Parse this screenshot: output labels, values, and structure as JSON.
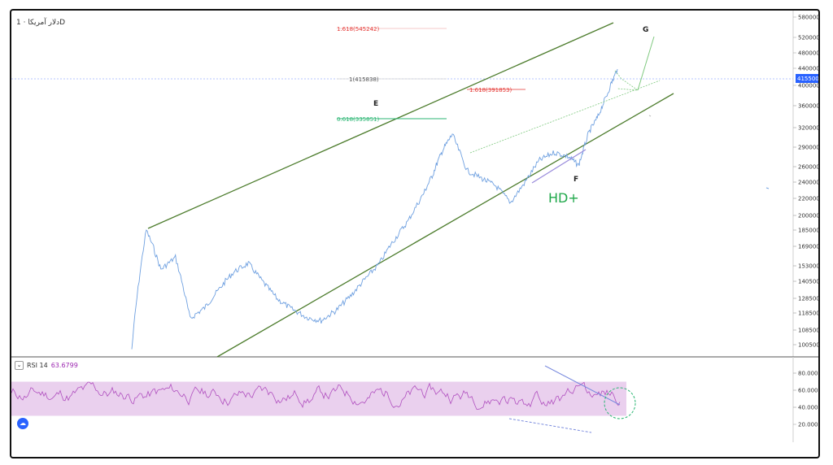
{
  "header": {
    "title": "دلار آمریکا · 1D"
  },
  "rsi_panel": {
    "label": "RSI 14",
    "value": "63.6799",
    "toggle_glyph": "⌄",
    "logo_glyph": "☁"
  },
  "chart_data": [
    {
      "type": "line",
      "title": "",
      "y_axis_ticks": [
        "580000",
        "520000",
        "480000",
        "440000",
        "400000",
        "360000",
        "320000",
        "290000",
        "260000",
        "240000",
        "220000",
        "200000",
        "185000",
        "169000",
        "153000",
        "140500",
        "128500",
        "118500",
        "108500",
        "100500"
      ],
      "y_axis_values": [
        580000,
        520000,
        480000,
        440000,
        400000,
        360000,
        320000,
        290000,
        260000,
        240000,
        220000,
        200000,
        185000,
        169000,
        153000,
        140500,
        128500,
        118500,
        108500,
        100500
      ],
      "current_price_label": "415500",
      "current_price": 415500,
      "series": [
        {
          "line_color": "#6fa0e0",
          "x": [
            0,
            3,
            6,
            9,
            12,
            15,
            18,
            21,
            24,
            27,
            30,
            33,
            36,
            39,
            42,
            45,
            48,
            51,
            54,
            57,
            60,
            62,
            64,
            66,
            69,
            72,
            75,
            78,
            81,
            84,
            87,
            90,
            92,
            94,
            96,
            98,
            100
          ],
          "y": [
            98000,
            185000,
            150000,
            160000,
            115000,
            122000,
            135000,
            148000,
            155000,
            140000,
            128000,
            121000,
            116000,
            114000,
            120000,
            130000,
            142000,
            155000,
            175000,
            195000,
            225000,
            250000,
            285000,
            310000,
            255000,
            245000,
            235000,
            215000,
            240000,
            270000,
            282000,
            275000,
            262000,
            310000,
            340000,
            385000,
            438000
          ]
        }
      ],
      "fib_levels": [
        {
          "label": "1.618(545242)",
          "value": 545242,
          "color": "#e53935"
        },
        {
          "label": "1(415838)",
          "value": 415838,
          "color": "#777777"
        },
        {
          "label": "1.618(391853)",
          "value": 391853,
          "color": "#e53935"
        },
        {
          "label": "0.618(335851)",
          "value": 335851,
          "color": "#2bb673"
        }
      ],
      "channel": {
        "line_color": "#4e7d2e"
      },
      "annotations": [
        "E",
        "F",
        "G",
        "HD+"
      ]
    },
    {
      "type": "line",
      "title": "RSI 14",
      "y_axis_ticks": [
        "80.0000",
        "60.0000",
        "40.0000",
        "20.0000"
      ],
      "y_axis_values": [
        80,
        60,
        40,
        20
      ],
      "band": [
        30,
        70
      ],
      "band_color": "#ead0ee",
      "line_color": "#b04fbf",
      "divergence_color": "#7b8cde"
    }
  ]
}
